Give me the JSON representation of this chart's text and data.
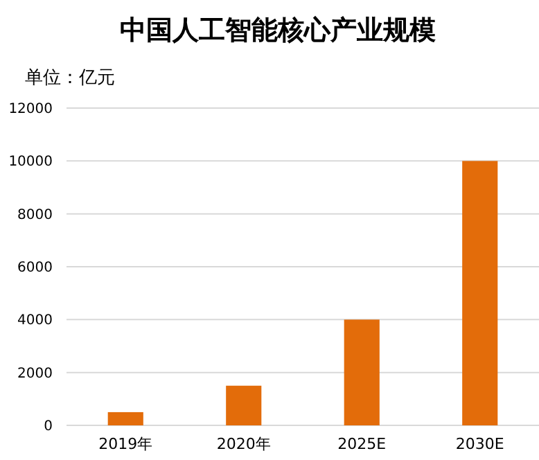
{
  "chart_data": {
    "type": "bar",
    "title": "中国人工智能核心产业规模",
    "subtitle": "单位：亿元",
    "categories": [
      "2019年",
      "2020年",
      "2025E",
      "2030E"
    ],
    "values": [
      500,
      1500,
      4000,
      10000
    ],
    "color": "#e36c0a",
    "ylim": [
      0,
      12000
    ],
    "yticks": [
      0,
      2000,
      4000,
      6000,
      8000,
      10000,
      12000
    ],
    "grid": "y"
  }
}
